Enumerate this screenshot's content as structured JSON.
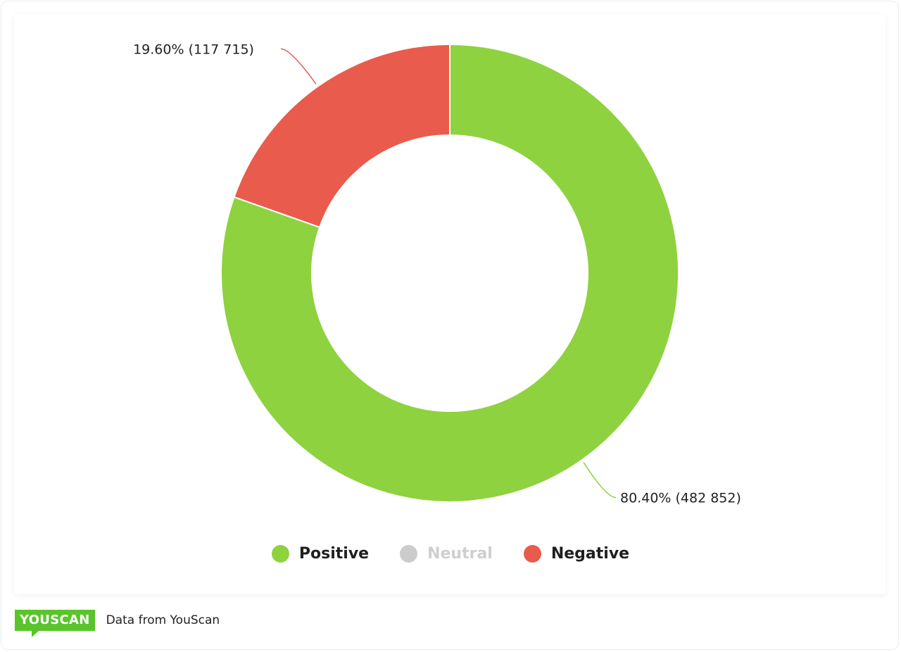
{
  "chart_data": {
    "type": "pie",
    "donut": true,
    "categories": [
      "Positive",
      "Neutral",
      "Negative"
    ],
    "values": [
      482852,
      0,
      117715
    ],
    "percentages": [
      80.4,
      0,
      19.6
    ],
    "data_labels": [
      "80.40% (482 852)",
      "",
      "19.60% (117 715)"
    ],
    "colors": [
      "#8ed23f",
      "#cccccc",
      "#e95b4c"
    ],
    "legend": {
      "placement": "bottom",
      "items": [
        {
          "label": "Positive",
          "color": "#8ed23f",
          "active": true
        },
        {
          "label": "Neutral",
          "color": "#cccccc",
          "active": false
        },
        {
          "label": "Negative",
          "color": "#e95b4c",
          "active": true
        }
      ]
    }
  },
  "footer": {
    "logo": "YOUSCAN",
    "text": "Data from YouScan"
  }
}
